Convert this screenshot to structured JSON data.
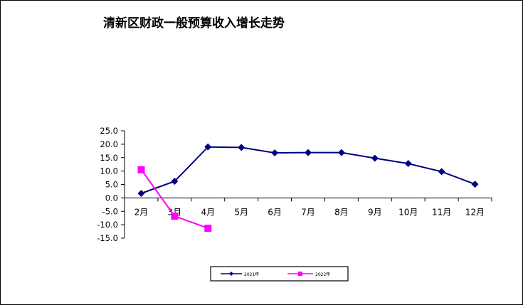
{
  "chart_data": {
    "type": "line",
    "title": "清新区财政一般预算收入增长走势",
    "categories": [
      "2月",
      "3月",
      "4月",
      "5月",
      "6月",
      "7月",
      "8月",
      "9月",
      "10月",
      "11月",
      "12月"
    ],
    "series": [
      {
        "name": "2021年",
        "color": "#000080",
        "marker": "diamond",
        "values": [
          1.7,
          6.2,
          19.0,
          18.8,
          16.8,
          16.9,
          16.9,
          14.8,
          12.8,
          9.8,
          5.1
        ]
      },
      {
        "name": "2022年",
        "color": "#FF00FF",
        "marker": "square",
        "values": [
          10.5,
          -6.8,
          -11.3,
          null,
          null,
          null,
          null,
          null,
          null,
          null,
          null
        ]
      }
    ],
    "y_ticks": [
      "25.0",
      "20.0",
      "15.0",
      "10.0",
      "5.0",
      "0.0",
      "-5.0",
      "-10.0",
      "-15.0"
    ],
    "ylim": [
      -15,
      25
    ],
    "grid": false,
    "legend_position": "bottom"
  }
}
